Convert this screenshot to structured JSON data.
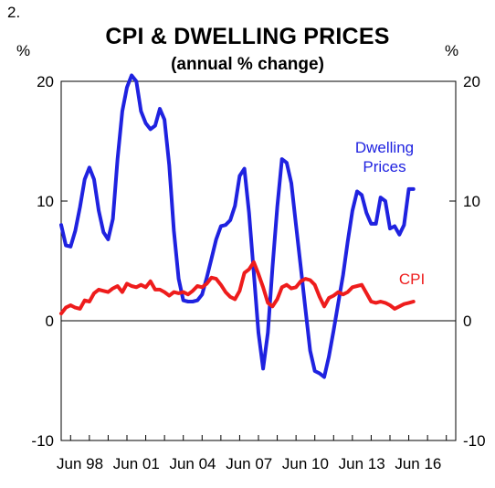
{
  "figure_number": "2.",
  "unit_left": "%",
  "unit_right": "%",
  "chart_data": {
    "type": "line",
    "title": "CPI & DWELLING PRICES",
    "subtitle": "(annual % change)",
    "xlabel": "",
    "ylabel": "%",
    "ylim": [
      -10,
      20
    ],
    "yticks": [
      -10,
      0,
      10,
      20
    ],
    "xlim": [
      1997.5,
      2018.5
    ],
    "x_tick_labels": [
      {
        "x": 1998.5,
        "label": "Jun 98"
      },
      {
        "x": 2001.5,
        "label": "Jun 01"
      },
      {
        "x": 2004.5,
        "label": "Jun 04"
      },
      {
        "x": 2007.5,
        "label": "Jun 07"
      },
      {
        "x": 2010.5,
        "label": "Jun 10"
      },
      {
        "x": 2013.5,
        "label": "Jun 13"
      },
      {
        "x": 2016.5,
        "label": "Jun 16"
      }
    ],
    "grid": false,
    "series": [
      {
        "name": "Dwelling Prices",
        "color": "#1f22e0",
        "points": [
          [
            1997.5,
            8.0
          ],
          [
            1997.75,
            6.3
          ],
          [
            1998.0,
            6.2
          ],
          [
            1998.25,
            7.5
          ],
          [
            1998.5,
            9.5
          ],
          [
            1998.75,
            11.8
          ],
          [
            1999.0,
            12.8
          ],
          [
            1999.25,
            11.8
          ],
          [
            1999.5,
            9.2
          ],
          [
            1999.75,
            7.4
          ],
          [
            2000.0,
            6.8
          ],
          [
            2000.25,
            8.5
          ],
          [
            2000.5,
            13.5
          ],
          [
            2000.75,
            17.5
          ],
          [
            2001.0,
            19.5
          ],
          [
            2001.25,
            20.5
          ],
          [
            2001.5,
            20.0
          ],
          [
            2001.75,
            17.5
          ],
          [
            2002.0,
            16.5
          ],
          [
            2002.25,
            16.0
          ],
          [
            2002.5,
            16.3
          ],
          [
            2002.75,
            17.7
          ],
          [
            2003.0,
            16.8
          ],
          [
            2003.25,
            13.0
          ],
          [
            2003.5,
            7.5
          ],
          [
            2003.75,
            3.5
          ],
          [
            2004.0,
            1.7
          ],
          [
            2004.25,
            1.6
          ],
          [
            2004.5,
            1.6
          ],
          [
            2004.75,
            1.7
          ],
          [
            2005.0,
            2.2
          ],
          [
            2005.25,
            3.6
          ],
          [
            2005.5,
            5.2
          ],
          [
            2005.75,
            6.8
          ],
          [
            2006.0,
            7.9
          ],
          [
            2006.25,
            8.0
          ],
          [
            2006.5,
            8.4
          ],
          [
            2006.75,
            9.6
          ],
          [
            2007.0,
            12.1
          ],
          [
            2007.25,
            12.7
          ],
          [
            2007.5,
            9.0
          ],
          [
            2007.75,
            4.0
          ],
          [
            2008.0,
            -1.0
          ],
          [
            2008.25,
            -4.0
          ],
          [
            2008.5,
            -1.0
          ],
          [
            2008.75,
            4.5
          ],
          [
            2009.0,
            9.5
          ],
          [
            2009.25,
            13.5
          ],
          [
            2009.5,
            13.2
          ],
          [
            2009.75,
            11.5
          ],
          [
            2010.0,
            8.0
          ],
          [
            2010.25,
            4.5
          ],
          [
            2010.5,
            1.0
          ],
          [
            2010.75,
            -2.5
          ],
          [
            2011.0,
            -4.2
          ],
          [
            2011.25,
            -4.4
          ],
          [
            2011.5,
            -4.7
          ],
          [
            2011.75,
            -3.0
          ],
          [
            2012.0,
            -0.8
          ],
          [
            2012.25,
            1.5
          ],
          [
            2012.5,
            3.8
          ],
          [
            2012.75,
            6.6
          ],
          [
            2013.0,
            9.2
          ],
          [
            2013.25,
            10.8
          ],
          [
            2013.5,
            10.5
          ],
          [
            2013.75,
            9.0
          ],
          [
            2014.0,
            8.1
          ],
          [
            2014.25,
            8.1
          ],
          [
            2014.5,
            10.3
          ],
          [
            2014.75,
            10.0
          ],
          [
            2015.0,
            7.7
          ],
          [
            2015.25,
            7.9
          ],
          [
            2015.5,
            7.2
          ],
          [
            2015.75,
            8.0
          ],
          [
            2016.0,
            11.0
          ],
          [
            2016.25,
            11.0
          ]
        ]
      },
      {
        "name": "CPI",
        "color": "#ee1c1c",
        "points": [
          [
            1997.5,
            0.6
          ],
          [
            1997.75,
            1.1
          ],
          [
            1998.0,
            1.3
          ],
          [
            1998.25,
            1.1
          ],
          [
            1998.5,
            1.0
          ],
          [
            1998.75,
            1.7
          ],
          [
            1999.0,
            1.6
          ],
          [
            1999.25,
            2.3
          ],
          [
            1999.5,
            2.6
          ],
          [
            1999.75,
            2.5
          ],
          [
            2000.0,
            2.4
          ],
          [
            2000.25,
            2.7
          ],
          [
            2000.5,
            2.9
          ],
          [
            2000.75,
            2.4
          ],
          [
            2001.0,
            3.1
          ],
          [
            2001.25,
            2.9
          ],
          [
            2001.5,
            2.8
          ],
          [
            2001.75,
            3.0
          ],
          [
            2002.0,
            2.8
          ],
          [
            2002.25,
            3.3
          ],
          [
            2002.5,
            2.6
          ],
          [
            2002.75,
            2.6
          ],
          [
            2003.0,
            2.4
          ],
          [
            2003.25,
            2.1
          ],
          [
            2003.5,
            2.4
          ],
          [
            2003.75,
            2.3
          ],
          [
            2004.0,
            2.4
          ],
          [
            2004.25,
            2.2
          ],
          [
            2004.5,
            2.5
          ],
          [
            2004.75,
            2.9
          ],
          [
            2005.0,
            2.8
          ],
          [
            2005.25,
            3.1
          ],
          [
            2005.5,
            3.6
          ],
          [
            2005.75,
            3.5
          ],
          [
            2006.0,
            3.0
          ],
          [
            2006.25,
            2.4
          ],
          [
            2006.5,
            2.0
          ],
          [
            2006.75,
            1.8
          ],
          [
            2007.0,
            2.5
          ],
          [
            2007.25,
            4.0
          ],
          [
            2007.5,
            4.3
          ],
          [
            2007.75,
            4.9
          ],
          [
            2008.0,
            3.9
          ],
          [
            2008.25,
            2.8
          ],
          [
            2008.5,
            1.5
          ],
          [
            2008.75,
            1.2
          ],
          [
            2009.0,
            1.8
          ],
          [
            2009.25,
            2.8
          ],
          [
            2009.5,
            3.0
          ],
          [
            2009.75,
            2.7
          ],
          [
            2010.0,
            2.8
          ],
          [
            2010.25,
            3.3
          ],
          [
            2010.5,
            3.5
          ],
          [
            2010.75,
            3.4
          ],
          [
            2011.0,
            3.0
          ],
          [
            2011.25,
            2.0
          ],
          [
            2011.5,
            1.2
          ],
          [
            2011.75,
            1.9
          ],
          [
            2012.0,
            2.1
          ],
          [
            2012.25,
            2.4
          ],
          [
            2012.5,
            2.2
          ],
          [
            2012.75,
            2.4
          ],
          [
            2013.0,
            2.8
          ],
          [
            2013.25,
            2.9
          ],
          [
            2013.5,
            3.0
          ],
          [
            2013.75,
            2.3
          ],
          [
            2014.0,
            1.6
          ],
          [
            2014.25,
            1.5
          ],
          [
            2014.5,
            1.6
          ],
          [
            2014.75,
            1.5
          ],
          [
            2015.0,
            1.3
          ],
          [
            2015.25,
            1.0
          ],
          [
            2015.5,
            1.2
          ],
          [
            2015.75,
            1.4
          ],
          [
            2016.0,
            1.5
          ],
          [
            2016.25,
            1.6
          ]
        ]
      }
    ],
    "series_labels": [
      {
        "series": "Dwelling Prices",
        "lines": [
          "Dwelling",
          "Prices"
        ]
      },
      {
        "series": "CPI",
        "lines": [
          "CPI"
        ]
      }
    ]
  }
}
